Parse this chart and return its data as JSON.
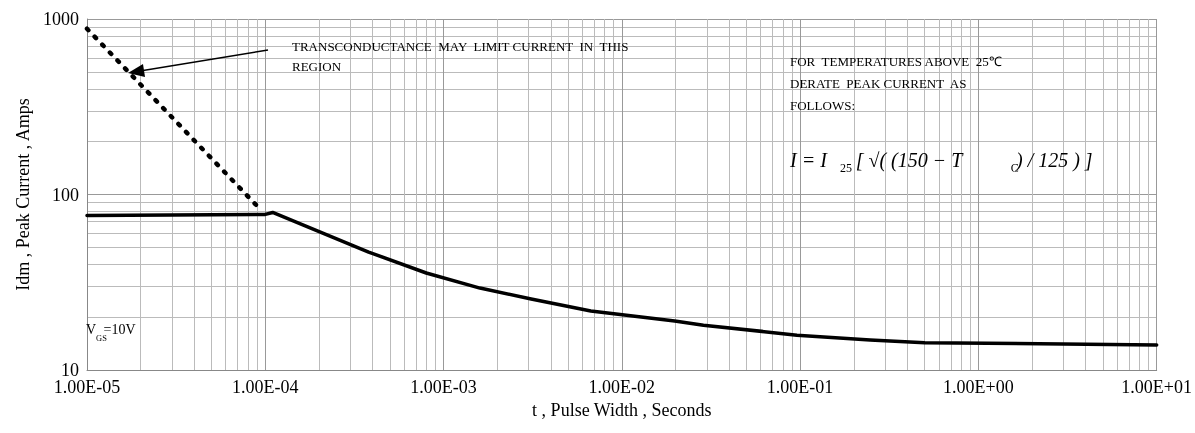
{
  "chart_data": {
    "type": "line",
    "xlabel": "t , Pulse Width , Seconds",
    "ylabel": "Idm , Peak Current , Amps",
    "log": "xy",
    "grid": true,
    "marker": "none",
    "xlim": [
      1e-05,
      10
    ],
    "ylim": [
      10,
      1000
    ],
    "xticks": [
      {
        "value": 1e-05,
        "label": "1.00E-05"
      },
      {
        "value": 0.0001,
        "label": "1.00E-04"
      },
      {
        "value": 0.001,
        "label": "1.00E-03"
      },
      {
        "value": 0.01,
        "label": "1.00E-02"
      },
      {
        "value": 0.1,
        "label": "1.00E-01"
      },
      {
        "value": 1,
        "label": "1.00E+00"
      },
      {
        "value": 10,
        "label": "1.00E+01"
      }
    ],
    "yticks": [
      10,
      100,
      1000
    ],
    "series": [
      {
        "color": "#000000",
        "line_style": "solid",
        "x": [
          1e-05,
          0.0001,
          0.00011,
          0.00038,
          0.0008,
          0.0016,
          0.0031,
          0.0067,
          0.0198,
          0.0287,
          0.096,
          0.247,
          0.5,
          10
        ],
        "values": [
          76,
          77,
          79,
          47,
          35.7,
          29.3,
          25.4,
          21.7,
          19,
          18,
          15.8,
          14.8,
          14.3,
          13.9
        ]
      },
      {
        "color": "#000000",
        "line_style": "dotted",
        "x": [
          1e-05,
          9e-05
        ],
        "values": [
          880,
          86
        ]
      }
    ],
    "annotations": [
      "TRANSCONDUCTANCE  MAY  LIMIT CURRENT  IN  THIS  REGION",
      "FOR  TEMPERATURES ABOVE  25℃ DERATE  PEAK CURRENT  AS  FOLLOWS:",
      "I = I$_{25}$ [ √( (150 − T$_{C}$) / 125 ) ]",
      "V$_{GS}$=10V"
    ]
  }
}
